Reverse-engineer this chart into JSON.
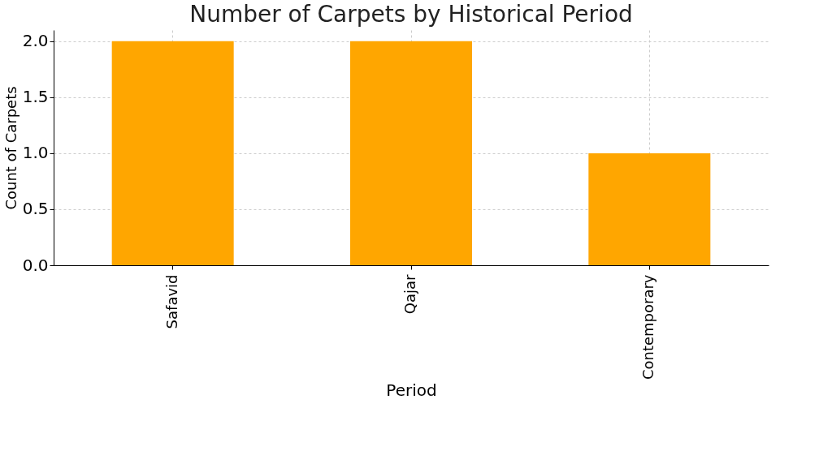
{
  "chart_data": {
    "type": "bar",
    "title": "Number of Carpets by Historical Period",
    "xlabel": "Period",
    "ylabel": "Count of Carpets",
    "categories": [
      "Safavid",
      "Qajar",
      "Contemporary"
    ],
    "values": [
      2,
      2,
      1
    ],
    "color": "#ffa600",
    "ylim": [
      0,
      2.1
    ],
    "yticks": [
      {
        "value": 0,
        "label": "0.0"
      },
      0.5,
      {
        "value": 1,
        "label": "1.0"
      },
      1.5,
      {
        "value": 2,
        "label": "2.0"
      }
    ],
    "grid": true
  }
}
